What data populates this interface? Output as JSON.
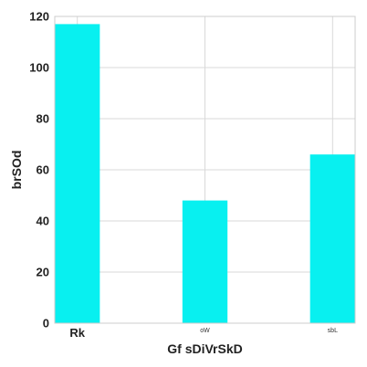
{
  "chart_data": {
    "type": "bar",
    "categories": [
      "Rk",
      "oW",
      "sbL"
    ],
    "values": [
      117,
      48,
      66
    ],
    "xlabel": "Gf sDiVrSkD",
    "ylabel": "brSOd",
    "ylim": [
      0,
      120
    ],
    "yticks": [
      0,
      20,
      40,
      60,
      80,
      100,
      120
    ],
    "grid": true,
    "legend": "none",
    "bar_color": "#08f0f0",
    "grid_color": "#d9d9d9"
  }
}
